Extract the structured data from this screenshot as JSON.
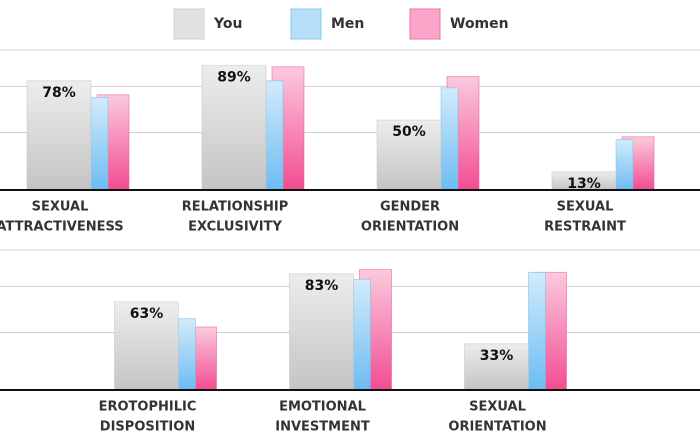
{
  "chart_data": [
    {
      "type": "bar",
      "categories": [
        [
          "SEXUAL",
          "ATTRACTIVENESS"
        ],
        [
          "RELATIONSHIP",
          "EXCLUSIVITY"
        ],
        [
          "GENDER",
          "ORIENTATION"
        ],
        [
          "SEXUAL",
          "RESTRAINT"
        ]
      ],
      "series": [
        {
          "name": "You",
          "color": "#c4c4c4",
          "values": [
            78,
            89,
            50,
            13
          ],
          "value_labels": [
            "78%",
            "89%",
            "50%",
            "13%"
          ]
        },
        {
          "name": "Men",
          "color": "#6cbcf2",
          "values": [
            66,
            78,
            73,
            36
          ]
        },
        {
          "name": "Women",
          "color": "#f24d92",
          "values": [
            68,
            88,
            81,
            38
          ]
        }
      ],
      "ylim": [
        0,
        100
      ],
      "yticks": [
        0,
        41,
        74,
        100
      ],
      "grid": true
    },
    {
      "type": "bar",
      "categories": [
        [
          "EROTOPHILIC",
          "DISPOSITION"
        ],
        [
          "EMOTIONAL",
          "INVESTMENT"
        ],
        [
          "SEXUAL",
          "ORIENTATION"
        ]
      ],
      "series": [
        {
          "color": "#c4c4c4",
          "values": [
            63,
            83,
            33
          ],
          "value_labels": [
            "63%",
            "83%",
            "33%"
          ]
        },
        {
          "color": "#6cbcf2",
          "values": [
            51,
            79,
            84
          ]
        },
        {
          "color": "#f24d92",
          "values": [
            45,
            86,
            84
          ]
        }
      ],
      "ylim": [
        0,
        100
      ],
      "yticks": [
        0,
        41,
        74,
        100
      ],
      "grid": true
    }
  ]
}
